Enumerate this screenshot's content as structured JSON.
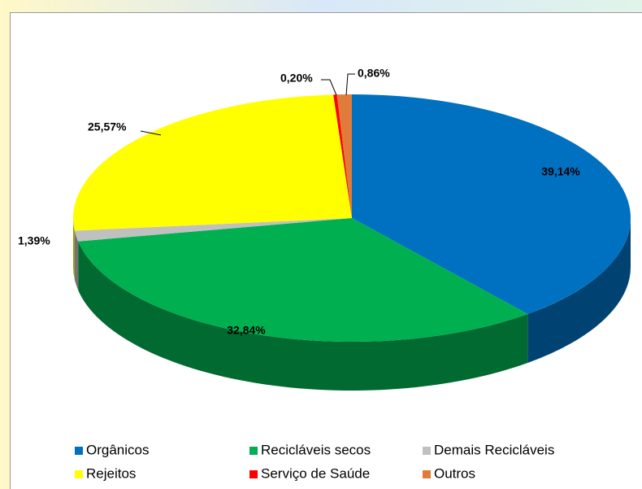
{
  "chart_data": {
    "type": "pie3d",
    "categories": [
      "Orgânicos",
      "Recicláveis secos",
      "Demais Recicláveis",
      "Rejeitos",
      "Serviço de Saúde",
      "Outros"
    ],
    "values": [
      39.14,
      32.84,
      1.39,
      25.57,
      0.2,
      0.86
    ],
    "value_labels": [
      "39,14%",
      "32,84%",
      "1,39%",
      "25,57%",
      "0,20%",
      "0,86%"
    ],
    "colors": [
      "#0070c0",
      "#00b050",
      "#c0c0c0",
      "#ffff00",
      "#ff0000",
      "#e07b39"
    ],
    "legend": "bottom"
  }
}
